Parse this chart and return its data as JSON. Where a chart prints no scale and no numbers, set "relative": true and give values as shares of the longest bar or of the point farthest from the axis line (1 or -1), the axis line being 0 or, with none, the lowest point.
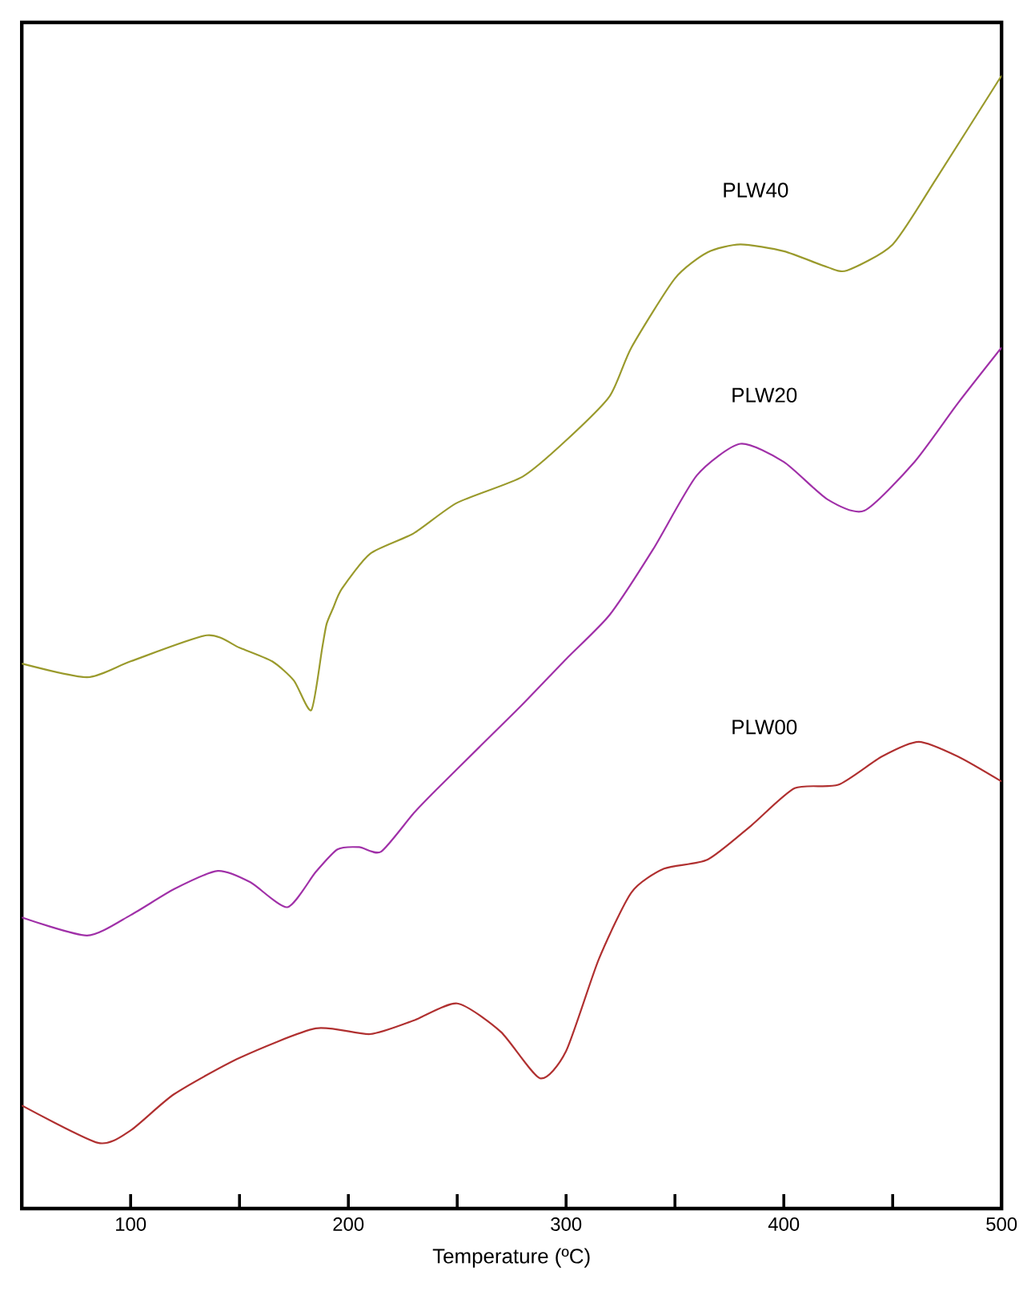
{
  "chart_data": {
    "type": "line",
    "xlabel": "Temperature (ºC)",
    "relative": true,
    "xlim": [
      50,
      500
    ],
    "xticks": [
      100,
      {
        "value": 150,
        "label": null
      },
      200,
      {
        "value": 250,
        "label": null
      },
      300,
      {
        "value": 350,
        "label": null
      },
      400,
      {
        "value": 450,
        "label": null
      },
      500
    ],
    "tick_labels": "x",
    "grid": false,
    "legend": false,
    "marker": "none",
    "line_style": "solid",
    "series": [
      {
        "name": "PLW40",
        "color": "#9a9a2c",
        "x": [
          50,
          80,
          100,
          135,
          150,
          165,
          175,
          183,
          188,
          190,
          193,
          197,
          210,
          230,
          250,
          280,
          300,
          320,
          330,
          350,
          365,
          380,
          400,
          420,
          429,
          450,
          470,
          500
        ],
        "values": [
          0.481,
          0.469,
          0.483,
          0.506,
          0.495,
          0.483,
          0.466,
          0.44,
          0.495,
          0.516,
          0.53,
          0.547,
          0.578,
          0.596,
          0.623,
          0.646,
          0.678,
          0.717,
          0.76,
          0.821,
          0.844,
          0.851,
          0.845,
          0.831,
          0.828,
          0.851,
          0.909,
          1.0
        ]
      },
      {
        "name": "PLW20",
        "color": "#a030a8",
        "x": [
          50,
          80,
          100,
          120,
          140,
          155,
          172,
          185,
          195,
          205,
          215,
          230,
          240,
          260,
          280,
          300,
          320,
          340,
          360,
          380,
          400,
          420,
          437,
          460,
          480,
          500
        ],
        "values": [
          0.257,
          0.241,
          0.259,
          0.282,
          0.298,
          0.288,
          0.266,
          0.297,
          0.317,
          0.319,
          0.315,
          0.349,
          0.369,
          0.407,
          0.445,
          0.485,
          0.524,
          0.582,
          0.647,
          0.675,
          0.659,
          0.626,
          0.616,
          0.659,
          0.711,
          0.76
        ]
      },
      {
        "name": "PLW00",
        "color": "#b03030",
        "x": [
          50,
          85,
          100,
          120,
          150,
          185,
          210,
          230,
          250,
          270,
          288,
          300,
          315,
          330,
          345,
          365,
          385,
          405,
          425,
          445,
          462,
          480,
          500
        ],
        "values": [
          0.091,
          0.058,
          0.069,
          0.101,
          0.133,
          0.159,
          0.154,
          0.166,
          0.181,
          0.156,
          0.115,
          0.139,
          0.22,
          0.279,
          0.3,
          0.308,
          0.338,
          0.371,
          0.374,
          0.399,
          0.412,
          0.399,
          0.377
        ]
      }
    ]
  }
}
